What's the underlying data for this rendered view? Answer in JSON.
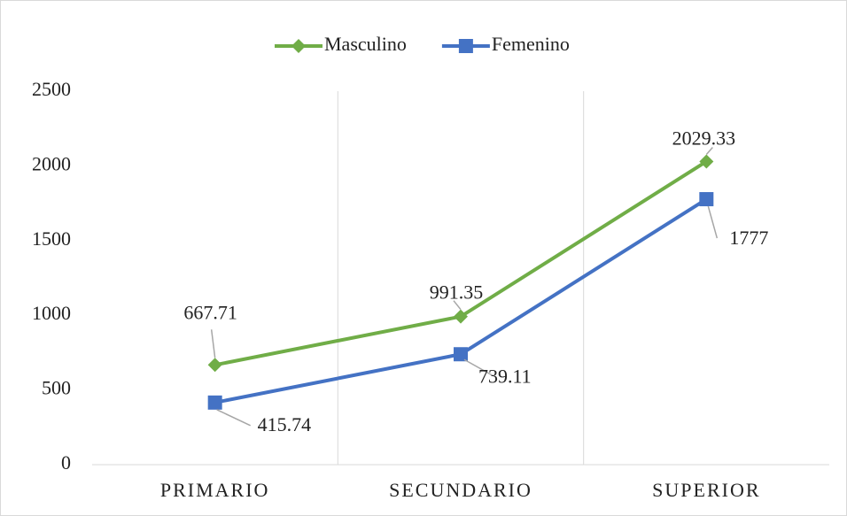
{
  "chart_data": {
    "type": "line",
    "categories": [
      "PRIMARIO",
      "SECUNDARIO",
      "SUPERIOR"
    ],
    "series": [
      {
        "name": "Masculino",
        "color": "#70ad47",
        "marker": "diamond",
        "values": [
          667.71,
          991.35,
          2029.33
        ]
      },
      {
        "name": "Femenino",
        "color": "#4472c4",
        "marker": "square",
        "values": [
          415.74,
          739.11,
          1777
        ]
      }
    ],
    "ylim": [
      0,
      2500
    ],
    "yticks": [
      0,
      500,
      1000,
      1500,
      2000,
      2500
    ],
    "legend": "top",
    "grid": false
  }
}
